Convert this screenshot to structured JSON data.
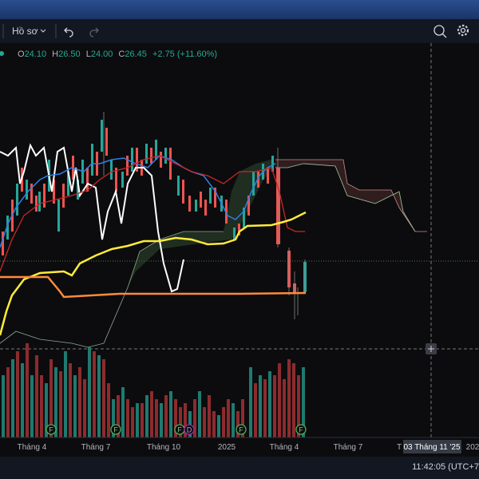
{
  "toolbar": {
    "profile": "Hồ sơ"
  },
  "legend": {
    "open": {
      "label": "O",
      "value": "24.10"
    },
    "high": {
      "label": "H",
      "value": "26.50"
    },
    "low": {
      "label": "L",
      "value": "24.00"
    },
    "close": {
      "label": "C",
      "value": "26.45"
    },
    "change": "+2.75 (+11.60%)"
  },
  "events": [
    "F",
    "F",
    "F",
    "D",
    "F",
    "F"
  ],
  "time_axis": [
    "Tháng 4",
    "Tháng 7",
    "Tháng 10",
    "2025",
    "Tháng 4",
    "Tháng 7",
    "T",
    "202"
  ],
  "crosshair_date": "03 Tháng 11 '25",
  "status": {
    "clock": "11:42:05 (UTC+7"
  }
}
